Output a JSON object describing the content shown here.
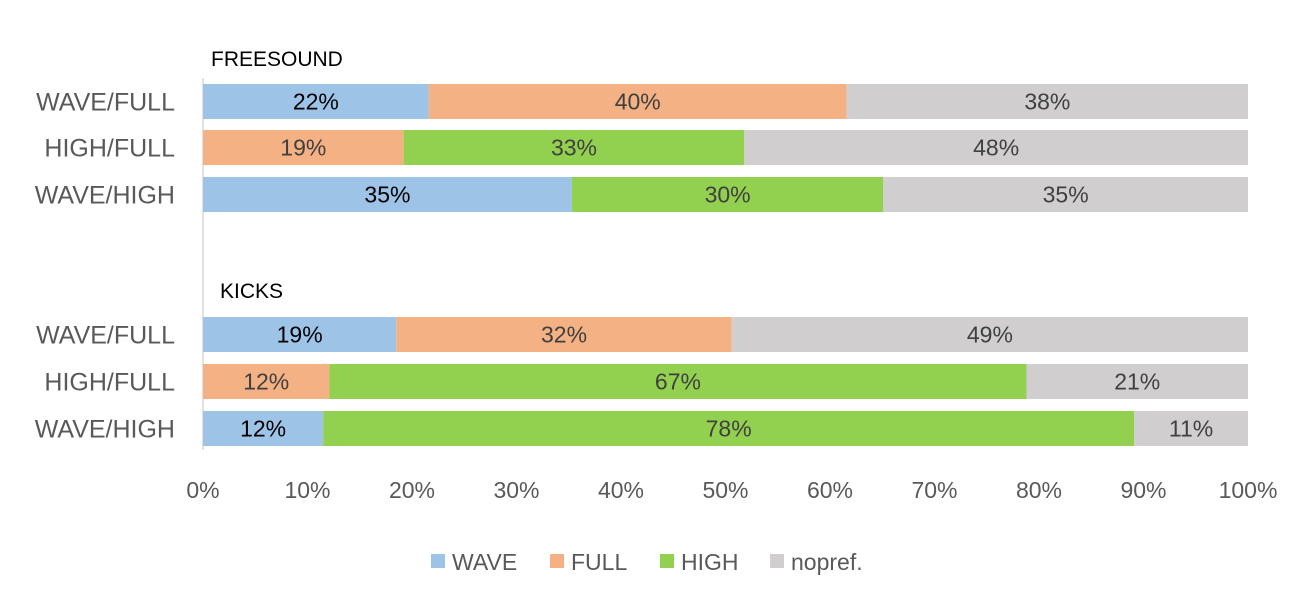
{
  "chart_data": {
    "type": "bar",
    "orientation": "horizontal",
    "stacked": true,
    "x_ticks": [
      "0%",
      "10%",
      "20%",
      "30%",
      "40%",
      "50%",
      "60%",
      "70%",
      "80%",
      "90%",
      "100%"
    ],
    "xlim": [
      0,
      100
    ],
    "grid": false,
    "legend_position": "bottom",
    "series": [
      {
        "name": "WAVE",
        "color": "#9dc3e6",
        "label_color": "#000000"
      },
      {
        "name": "FULL",
        "color": "#f4b183",
        "label_color": "#404040"
      },
      {
        "name": "HIGH",
        "color": "#92d050",
        "label_color": "#404040"
      },
      {
        "name": "nopref.",
        "color": "#d0cece",
        "label_color": "#404040"
      }
    ],
    "groups": [
      {
        "title": "FREESOUND",
        "rows": [
          {
            "label": "WAVE/FULL",
            "segments": [
              {
                "series": "WAVE",
                "value": 21.6,
                "label": "22%"
              },
              {
                "series": "FULL",
                "value": 40.0,
                "label": "40%"
              },
              {
                "series": "nopref.",
                "value": 38.4,
                "label": "38%"
              }
            ]
          },
          {
            "label": "HIGH/FULL",
            "segments": [
              {
                "series": "FULL",
                "value": 19.2,
                "label": "19%"
              },
              {
                "series": "HIGH",
                "value": 32.6,
                "label": "33%"
              },
              {
                "series": "nopref.",
                "value": 48.2,
                "label": "48%"
              }
            ]
          },
          {
            "label": "WAVE/HIGH",
            "segments": [
              {
                "series": "WAVE",
                "value": 35.3,
                "label": "35%"
              },
              {
                "series": "HIGH",
                "value": 29.8,
                "label": "30%"
              },
              {
                "series": "nopref.",
                "value": 34.9,
                "label": "35%"
              }
            ]
          }
        ]
      },
      {
        "title": "KICKS",
        "rows": [
          {
            "label": "WAVE/FULL",
            "segments": [
              {
                "series": "WAVE",
                "value": 18.5,
                "label": "19%"
              },
              {
                "series": "FULL",
                "value": 32.1,
                "label": "32%"
              },
              {
                "series": "nopref.",
                "value": 49.4,
                "label": "49%"
              }
            ]
          },
          {
            "label": "HIGH/FULL",
            "segments": [
              {
                "series": "FULL",
                "value": 12.1,
                "label": "12%"
              },
              {
                "series": "HIGH",
                "value": 66.7,
                "label": "67%"
              },
              {
                "series": "nopref.",
                "value": 21.2,
                "label": "21%"
              }
            ]
          },
          {
            "label": "WAVE/HIGH",
            "segments": [
              {
                "series": "WAVE",
                "value": 11.5,
                "label": "12%"
              },
              {
                "series": "HIGH",
                "value": 77.6,
                "label": "78%"
              },
              {
                "series": "nopref.",
                "value": 10.9,
                "label": "11%"
              }
            ]
          }
        ]
      }
    ]
  }
}
